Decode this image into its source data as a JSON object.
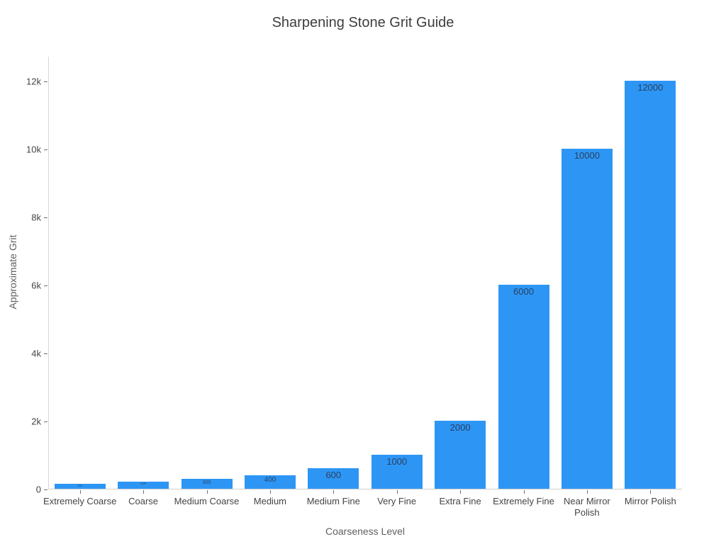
{
  "chart_data": {
    "type": "bar",
    "title": "Sharpening Stone Grit Guide",
    "xlabel": "Coarseness Level",
    "ylabel": "Approximate Grit",
    "categories": [
      "Extremely Coarse",
      "Coarse",
      "Medium Coarse",
      "Medium",
      "Medium Fine",
      "Very Fine",
      "Extra Fine",
      "Extremely Fine",
      "Near Mirror\nPolish",
      "Mirror Polish"
    ],
    "values": [
      150,
      200,
      300,
      400,
      600,
      1000,
      2000,
      6000,
      10000,
      12000
    ],
    "bar_labels": [
      "150",
      "200",
      "300",
      "400",
      "600",
      "1000",
      "2000",
      "6000",
      "10000",
      "12000"
    ],
    "ylim": [
      0,
      12000
    ],
    "yticks": [
      {
        "value": 0,
        "label": "0"
      },
      {
        "value": 2000,
        "label": "2k"
      },
      {
        "value": 4000,
        "label": "4k"
      },
      {
        "value": 6000,
        "label": "6k"
      },
      {
        "value": 8000,
        "label": "8k"
      },
      {
        "value": 10000,
        "label": "10k"
      },
      {
        "value": 12000,
        "label": "12k"
      }
    ],
    "grid": false,
    "legend": "none",
    "background": "#ffffff",
    "bar_color": "#2D96F5",
    "bar_label_color": "#2a3f5f",
    "tick_label_color": "#444444",
    "axis_title_color": "#5f5f5f",
    "title_color": "#3d3d3d"
  }
}
